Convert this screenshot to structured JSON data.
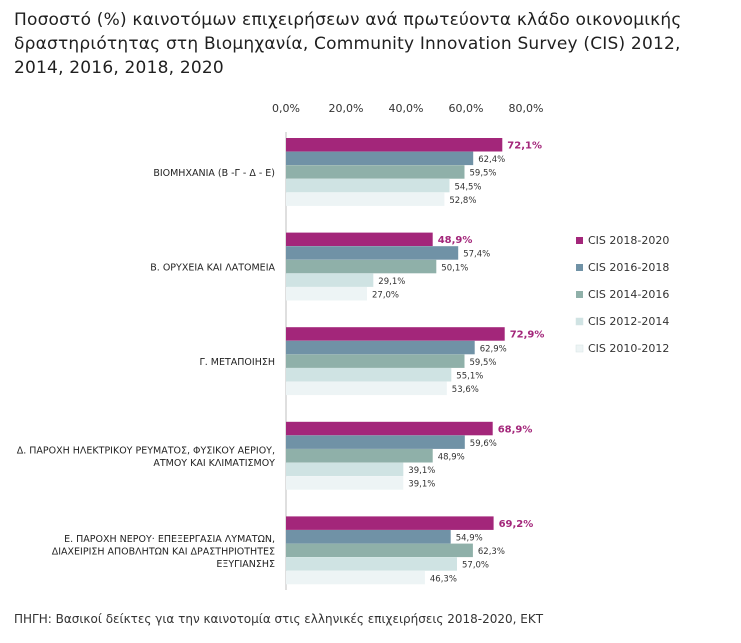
{
  "title_lines": [
    "Ποσοστό (%) καινοτόμων επιχειρήσεων ανά πρωτεύοντα κλάδο οικονομικής",
    "δραστηριότητας στη Βιομηχανία, Community Innovation Survey (CIS) 2012,",
    "2014, 2016, 2018, 2020"
  ],
  "source": "ΠΗΓΗ: Βασικοί δείκτες για την καινοτομία στις ελληνικές επιχειρήσεις 2018-2020, ΕΚΤ",
  "chart_data": {
    "type": "bar",
    "orientation": "horizontal",
    "xlim": [
      0,
      80
    ],
    "xticks": [
      0,
      20,
      40,
      60,
      80
    ],
    "xtick_labels": [
      "0,0%",
      "20,0%",
      "40,0%",
      "60,0%",
      "80,0%"
    ],
    "axis_position": "top",
    "legend_position": "right",
    "categories": [
      [
        "ΒΙΟΜΗΧΑΝΙΑ (Β -Γ - Δ - Ε)"
      ],
      [
        "Β. ΟΡΥΧΕΙΑ ΚΑΙ ΛΑΤΟΜΕΙΑ"
      ],
      [
        "Γ. ΜΕΤΑΠΟΙΗΣΗ"
      ],
      [
        "Δ. ΠΑΡΟΧΗ ΗΛΕΚΤΡΙΚΟΥ ΡΕΥΜΑΤΟΣ, ΦΥΣΙΚΟΥ ΑΕΡΙΟΥ,",
        "ΑΤΜΟΥ ΚΑΙ ΚΛΙΜΑΤΙΣΜΟΥ"
      ],
      [
        "Ε. ΠΑΡΟΧΗ ΝΕΡΟΥ· ΕΠΕΞΕΡΓΑΣΙΑ ΛΥΜΑΤΩΝ,",
        "ΔΙΑΧΕΙΡΙΣΗ ΑΠΟΒΛΗΤΩΝ ΚΑΙ ΔΡΑΣΤΗΡΙΟΤΗΤΕΣ",
        "ΕΞΥΓΙΑΝΣΗΣ"
      ]
    ],
    "series": [
      {
        "name": "CIS 2018-2020",
        "color": "#a3267a",
        "label_color": "#a3267a",
        "label_bold": true,
        "values": [
          72.1,
          48.9,
          72.9,
          68.9,
          69.2
        ],
        "labels": [
          "72,1%",
          "48,9%",
          "72,9%",
          "68,9%",
          "69,2%"
        ]
      },
      {
        "name": "CIS 2016-2018",
        "color": "#7092a6",
        "label_color": "#333333",
        "label_bold": false,
        "values": [
          62.4,
          57.4,
          62.9,
          59.6,
          54.9
        ],
        "labels": [
          "62,4%",
          "57,4%",
          "62,9%",
          "59,6%",
          "54,9%"
        ]
      },
      {
        "name": "CIS 2014-2016",
        "color": "#8fb0a9",
        "label_color": "#333333",
        "label_bold": false,
        "values": [
          59.5,
          50.1,
          59.5,
          48.9,
          62.3
        ],
        "labels": [
          "59,5%",
          "50,1%",
          "59,5%",
          "48,9%",
          "62,3%"
        ]
      },
      {
        "name": "CIS 2012-2014",
        "color": "#cfe3e3",
        "label_color": "#333333",
        "label_bold": false,
        "values": [
          54.5,
          29.1,
          55.1,
          39.1,
          57.0
        ],
        "labels": [
          "54,5%",
          "29,1%",
          "55,1%",
          "39,1%",
          "57,0%"
        ]
      },
      {
        "name": "CIS 2010-2012",
        "color": "#edf4f5",
        "label_color": "#333333",
        "label_bold": false,
        "values": [
          52.8,
          27.0,
          53.6,
          39.1,
          46.3
        ],
        "labels": [
          "52,8%",
          "27,0%",
          "53,6%",
          "39,1%",
          "46,3%"
        ]
      }
    ]
  }
}
